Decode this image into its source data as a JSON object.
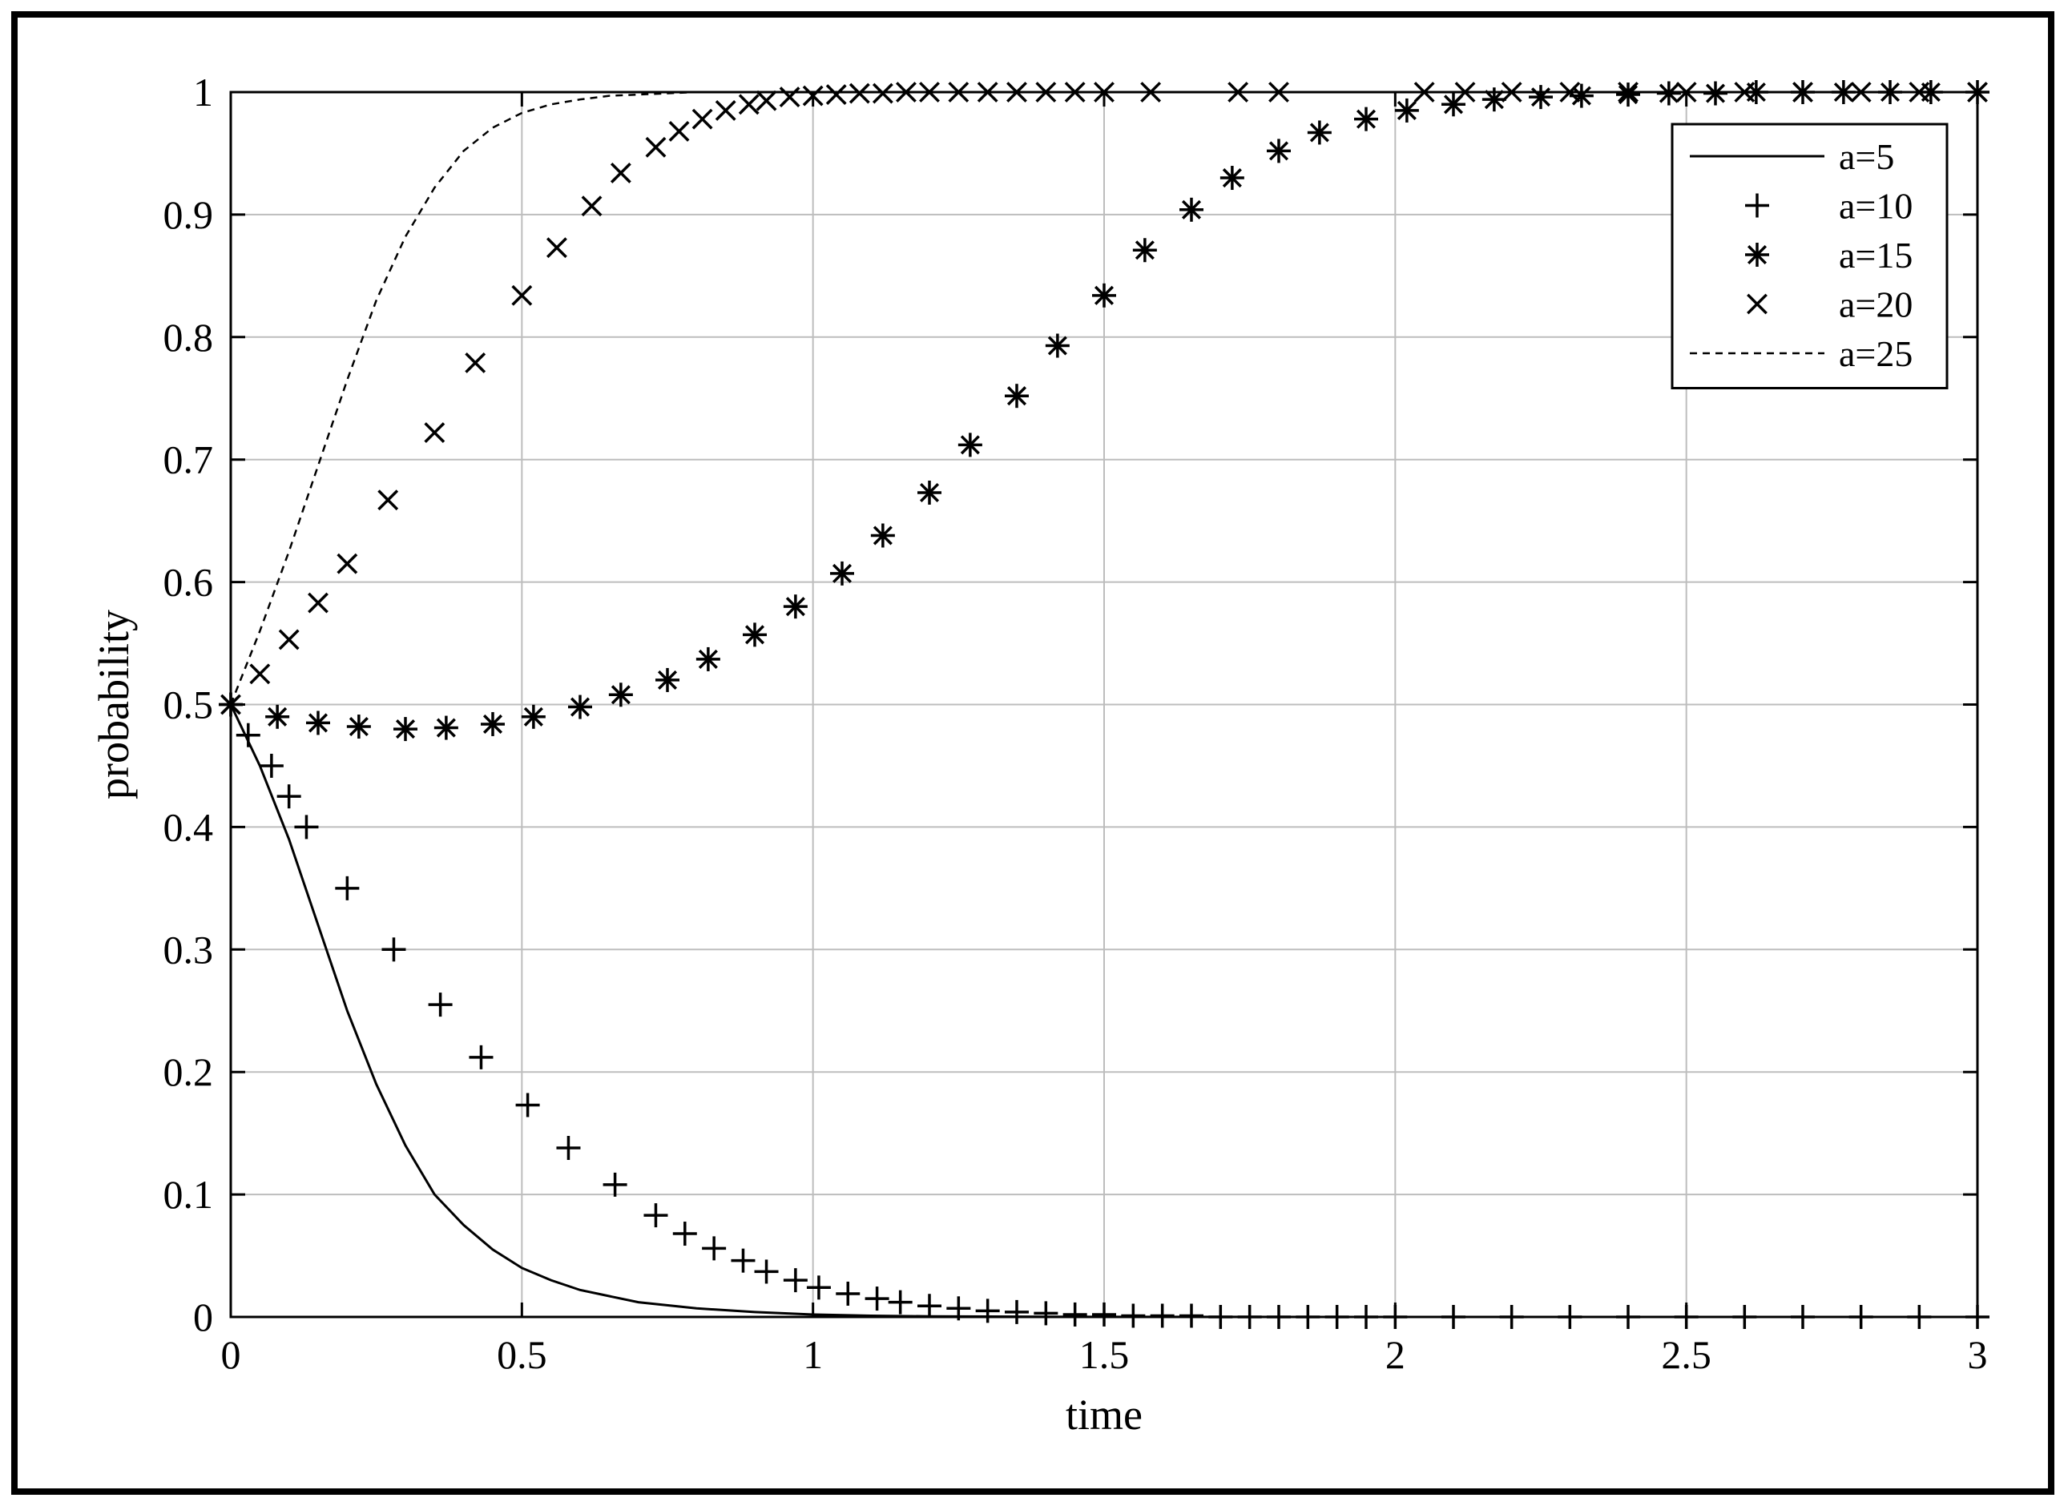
{
  "chart_data": {
    "type": "line",
    "title": "",
    "xlabel": "time",
    "ylabel": "probability",
    "xlim": [
      0,
      3
    ],
    "ylim": [
      0,
      1
    ],
    "grid": true,
    "legend_position": "top-right",
    "x_ticks": [
      "0",
      "0.5",
      "1",
      "1.5",
      "2",
      "2.5",
      "3"
    ],
    "y_ticks": [
      "0",
      "0.1",
      "0.2",
      "0.3",
      "0.4",
      "0.5",
      "0.6",
      "0.7",
      "0.8",
      "0.9",
      "1"
    ],
    "series": [
      {
        "name": "a=5",
        "style": "solid-line",
        "x": [
          0,
          0.05,
          0.1,
          0.15,
          0.2,
          0.25,
          0.3,
          0.35,
          0.4,
          0.45,
          0.5,
          0.55,
          0.6,
          0.7,
          0.8,
          0.9,
          1.0,
          1.1,
          1.2,
          1.3,
          1.4,
          1.5,
          2.0,
          2.5,
          3.0
        ],
        "y": [
          0.5,
          0.45,
          0.39,
          0.32,
          0.25,
          0.19,
          0.14,
          0.1,
          0.075,
          0.055,
          0.04,
          0.03,
          0.022,
          0.012,
          0.007,
          0.004,
          0.002,
          0.001,
          0.0005,
          0.0003,
          0.0002,
          0.0001,
          0,
          0,
          0
        ]
      },
      {
        "name": "a=10",
        "style": "plus-marker",
        "x": [
          0,
          0.03,
          0.07,
          0.1,
          0.13,
          0.2,
          0.28,
          0.36,
          0.43,
          0.51,
          0.58,
          0.66,
          0.73,
          0.78,
          0.83,
          0.88,
          0.92,
          0.97,
          1.01,
          1.06,
          1.11,
          1.15,
          1.2,
          1.25,
          1.3,
          1.35,
          1.4,
          1.45,
          1.5,
          1.55,
          1.6,
          1.65,
          1.7,
          1.75,
          1.8,
          1.85,
          1.9,
          1.95,
          2.0,
          2.1,
          2.2,
          2.3,
          2.4,
          2.5,
          2.6,
          2.7,
          2.8,
          2.9,
          3.0
        ],
        "y": [
          0.5,
          0.475,
          0.45,
          0.425,
          0.4,
          0.35,
          0.3,
          0.255,
          0.212,
          0.173,
          0.138,
          0.108,
          0.083,
          0.068,
          0.056,
          0.046,
          0.037,
          0.03,
          0.024,
          0.019,
          0.015,
          0.012,
          0.009,
          0.007,
          0.005,
          0.004,
          0.003,
          0.002,
          0.002,
          0.001,
          0.001,
          0.001,
          0,
          0,
          0,
          0,
          0,
          0,
          0,
          0,
          0,
          0,
          0,
          0,
          0,
          0,
          0,
          0,
          0
        ]
      },
      {
        "name": "a=15",
        "style": "star-marker",
        "x": [
          0,
          0.08,
          0.15,
          0.22,
          0.3,
          0.37,
          0.45,
          0.52,
          0.6,
          0.67,
          0.75,
          0.82,
          0.9,
          0.97,
          1.05,
          1.12,
          1.2,
          1.27,
          1.35,
          1.42,
          1.5,
          1.57,
          1.65,
          1.72,
          1.8,
          1.87,
          1.95,
          2.02,
          2.1,
          2.17,
          2.25,
          2.32,
          2.4,
          2.47,
          2.55,
          2.62,
          2.7,
          2.77,
          2.85,
          2.92,
          3.0
        ],
        "y": [
          0.5,
          0.49,
          0.485,
          0.482,
          0.48,
          0.481,
          0.484,
          0.49,
          0.498,
          0.508,
          0.52,
          0.537,
          0.557,
          0.58,
          0.607,
          0.638,
          0.673,
          0.712,
          0.752,
          0.793,
          0.834,
          0.871,
          0.904,
          0.93,
          0.952,
          0.967,
          0.978,
          0.985,
          0.99,
          0.994,
          0.996,
          0.997,
          0.998,
          0.999,
          0.999,
          1.0,
          1.0,
          1.0,
          1.0,
          1.0,
          1.0
        ]
      },
      {
        "name": "a=20",
        "style": "x-marker",
        "x": [
          0,
          0.05,
          0.1,
          0.15,
          0.2,
          0.27,
          0.35,
          0.42,
          0.5,
          0.56,
          0.62,
          0.67,
          0.73,
          0.77,
          0.81,
          0.85,
          0.89,
          0.92,
          0.96,
          1.0,
          1.04,
          1.08,
          1.12,
          1.16,
          1.2,
          1.25,
          1.3,
          1.35,
          1.4,
          1.45,
          1.5,
          1.58,
          1.73,
          1.8,
          2.05,
          2.12,
          2.2,
          2.3,
          2.4,
          2.5,
          2.6,
          2.7,
          2.8,
          2.9,
          3.0
        ],
        "y": [
          0.5,
          0.525,
          0.553,
          0.583,
          0.615,
          0.667,
          0.722,
          0.779,
          0.834,
          0.873,
          0.907,
          0.934,
          0.955,
          0.968,
          0.978,
          0.985,
          0.99,
          0.993,
          0.996,
          0.997,
          0.998,
          0.999,
          0.999,
          1.0,
          1.0,
          1.0,
          1.0,
          1.0,
          1.0,
          1.0,
          1.0,
          1.0,
          1.0,
          1.0,
          1.0,
          1.0,
          1.0,
          1.0,
          1.0,
          1.0,
          1.0,
          1.0,
          1.0,
          1.0,
          1.0
        ]
      },
      {
        "name": "a=25",
        "style": "dashed-line",
        "x": [
          0,
          0.05,
          0.1,
          0.15,
          0.2,
          0.25,
          0.3,
          0.35,
          0.4,
          0.45,
          0.5,
          0.55,
          0.6,
          0.65,
          0.7,
          0.75,
          0.8,
          0.9,
          1.0,
          1.5,
          2.0,
          2.5,
          3.0
        ],
        "y": [
          0.5,
          0.56,
          0.625,
          0.695,
          0.765,
          0.83,
          0.882,
          0.922,
          0.952,
          0.971,
          0.983,
          0.99,
          0.994,
          0.997,
          0.998,
          0.999,
          1.0,
          1.0,
          1.0,
          1.0,
          1.0,
          1.0,
          1.0
        ]
      }
    ]
  }
}
